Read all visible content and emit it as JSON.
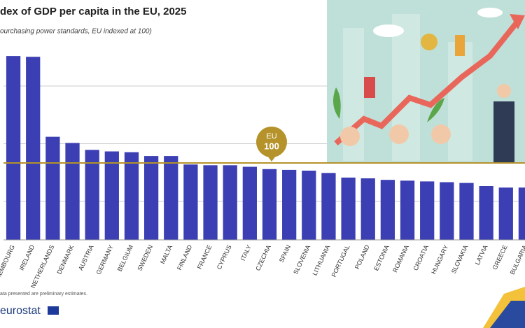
{
  "chart_data": {
    "type": "bar",
    "title": "dex of GDP per capita in the EU, 2025",
    "subtitle": "ourchasing power standards, EU indexed at 100)",
    "categories": [
      "LUXEMBOURG",
      "IRELAND",
      "NETHERLANDS",
      "DENMARK",
      "AUSTRIA",
      "GERMANY",
      "BELGIUM",
      "SWEDEN",
      "MALTA",
      "FINLAND",
      "FRANCE",
      "CYPRUS",
      "ITALY",
      "CZECHIA",
      "SPAIN",
      "SLOVENIA",
      "LITHUANIA",
      "PORTUGAL",
      "POLAND",
      "ESTONIA",
      "ROMANIA",
      "CROATIA",
      "HUNGARY",
      "SLOVAKIA",
      "LATVIA",
      "GREECE",
      "BULGARIA"
    ],
    "values": [
      239,
      238,
      134,
      126,
      117,
      115,
      114,
      109,
      109,
      98,
      97,
      97,
      95,
      92,
      91,
      90,
      87,
      81,
      80,
      78,
      77,
      76,
      75,
      74,
      70,
      68,
      68
    ],
    "color": "#3b3fb3",
    "ylim": [
      0,
      250
    ],
    "yticks": [
      50,
      125,
      200
    ],
    "grid": true,
    "reference_line": 100,
    "reference_label": "EU",
    "reference_color": "#b5922a",
    "footnote": "ata presented are preliminary estimates.",
    "source": "eurostat"
  }
}
